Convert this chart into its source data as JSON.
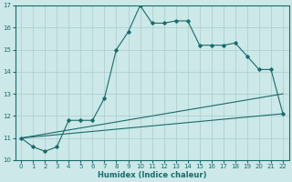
{
  "title": "",
  "xlabel": "Humidex (Indice chaleur)",
  "ylabel": "",
  "bg_color": "#cce8e8",
  "line_color": "#1a6b6b",
  "grid_color": "#aacccc",
  "xlim": [
    -0.5,
    22.5
  ],
  "ylim": [
    10,
    17
  ],
  "xticks": [
    0,
    1,
    2,
    3,
    4,
    5,
    6,
    7,
    8,
    9,
    10,
    11,
    12,
    13,
    14,
    15,
    16,
    17,
    18,
    19,
    20,
    21,
    22
  ],
  "yticks": [
    10,
    11,
    12,
    13,
    14,
    15,
    16,
    17
  ],
  "line1_x": [
    0,
    1,
    2,
    3,
    4,
    5,
    6,
    7,
    8,
    9,
    10,
    11,
    12,
    13,
    14,
    15,
    16,
    17,
    18,
    19,
    20,
    21,
    22
  ],
  "line1_y": [
    11.0,
    10.6,
    10.4,
    10.6,
    11.8,
    11.8,
    11.8,
    12.8,
    15.0,
    15.8,
    17.0,
    16.2,
    16.2,
    16.3,
    16.3,
    15.2,
    15.2,
    15.2,
    15.3,
    14.7,
    14.1,
    14.1,
    12.1
  ],
  "line2_x": [
    0,
    22
  ],
  "line2_y": [
    11.0,
    13.0
  ],
  "line3_x": [
    0,
    22
  ],
  "line3_y": [
    11.0,
    12.1
  ],
  "figsize": [
    3.2,
    2.0
  ],
  "dpi": 100
}
